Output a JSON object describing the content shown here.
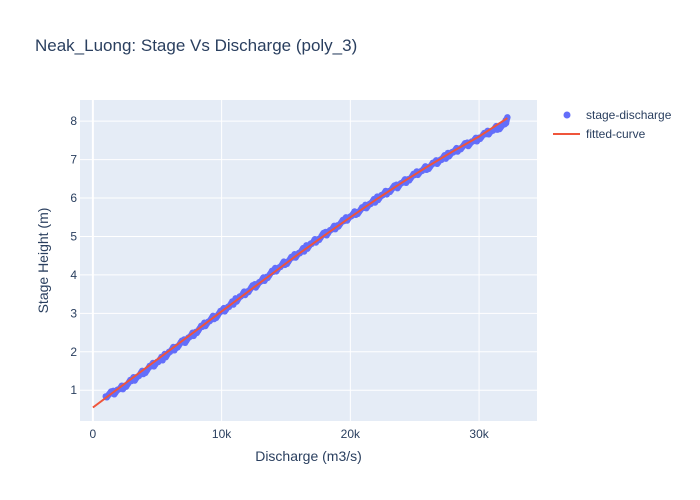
{
  "chart_data": {
    "type": "scatter",
    "title": "Neak_Luong: Stage Vs Discharge (poly_3)",
    "xlabel": "Discharge (m3/s)",
    "ylabel": "Stage Height (m)",
    "xlim": [
      -1000,
      34500
    ],
    "ylim": [
      0.2,
      8.55
    ],
    "x_ticks": [
      0,
      10000,
      20000,
      30000
    ],
    "x_tick_labels": [
      "0",
      "10k",
      "20k",
      "30k"
    ],
    "y_ticks": [
      1,
      2,
      3,
      4,
      5,
      6,
      7,
      8
    ],
    "y_tick_labels": [
      "1",
      "2",
      "3",
      "4",
      "5",
      "6",
      "7",
      "8"
    ],
    "grid": true,
    "legend_position": "top-right",
    "colors": {
      "plot_background": "#e5ecf6",
      "grid": "#ffffff",
      "text": "#2a3f5f",
      "points": "#636efa",
      "curve": "#ef553b"
    },
    "series": [
      {
        "name": "stage-discharge",
        "kind": "markers",
        "x_range": [
          1000,
          32200
        ],
        "points": [
          [
            1000,
            0.84
          ],
          [
            1500,
            0.92
          ],
          [
            2000,
            1.02
          ],
          [
            2500,
            1.12
          ],
          [
            3000,
            1.24
          ],
          [
            3500,
            1.36
          ],
          [
            4000,
            1.49
          ],
          [
            4500,
            1.62
          ],
          [
            5000,
            1.74
          ],
          [
            5500,
            1.86
          ],
          [
            6000,
            2.0
          ],
          [
            6500,
            2.13
          ],
          [
            7000,
            2.25
          ],
          [
            7500,
            2.38
          ],
          [
            8000,
            2.52
          ],
          [
            8500,
            2.65
          ],
          [
            9000,
            2.79
          ],
          [
            9500,
            2.92
          ],
          [
            10000,
            3.05
          ],
          [
            10500,
            3.17
          ],
          [
            11000,
            3.31
          ],
          [
            11500,
            3.44
          ],
          [
            12000,
            3.57
          ],
          [
            12500,
            3.69
          ],
          [
            13000,
            3.82
          ],
          [
            13500,
            3.95
          ],
          [
            14000,
            4.08
          ],
          [
            14500,
            4.2
          ],
          [
            15000,
            4.33
          ],
          [
            15500,
            4.45
          ],
          [
            16000,
            4.57
          ],
          [
            16500,
            4.69
          ],
          [
            17000,
            4.81
          ],
          [
            17500,
            4.93
          ],
          [
            18000,
            5.05
          ],
          [
            18500,
            5.17
          ],
          [
            19000,
            5.29
          ],
          [
            19500,
            5.4
          ],
          [
            20000,
            5.52
          ],
          [
            20500,
            5.63
          ],
          [
            21000,
            5.74
          ],
          [
            21500,
            5.85
          ],
          [
            22000,
            5.96
          ],
          [
            22500,
            6.07
          ],
          [
            23000,
            6.18
          ],
          [
            23500,
            6.28
          ],
          [
            24000,
            6.39
          ],
          [
            24500,
            6.49
          ],
          [
            25000,
            6.6
          ],
          [
            25500,
            6.7
          ],
          [
            26000,
            6.8
          ],
          [
            26500,
            6.9
          ],
          [
            27000,
            7.0
          ],
          [
            27500,
            7.1
          ],
          [
            28000,
            7.19
          ],
          [
            28500,
            7.29
          ],
          [
            29000,
            7.38
          ],
          [
            29500,
            7.47
          ],
          [
            30000,
            7.57
          ],
          [
            30500,
            7.66
          ],
          [
            31000,
            7.75
          ],
          [
            31500,
            7.84
          ],
          [
            32000,
            7.92
          ],
          [
            32200,
            8.1
          ]
        ]
      },
      {
        "name": "fitted-curve",
        "kind": "line",
        "points": [
          [
            0,
            0.55
          ],
          [
            2000,
            1.05
          ],
          [
            4000,
            1.55
          ],
          [
            6000,
            2.05
          ],
          [
            8000,
            2.55
          ],
          [
            10000,
            3.05
          ],
          [
            12000,
            3.55
          ],
          [
            14000,
            4.05
          ],
          [
            16000,
            4.55
          ],
          [
            18000,
            5.03
          ],
          [
            20000,
            5.5
          ],
          [
            22000,
            5.96
          ],
          [
            24000,
            6.4
          ],
          [
            26000,
            6.82
          ],
          [
            28000,
            7.22
          ],
          [
            30000,
            7.6
          ],
          [
            32200,
            8.08
          ]
        ]
      }
    ]
  }
}
